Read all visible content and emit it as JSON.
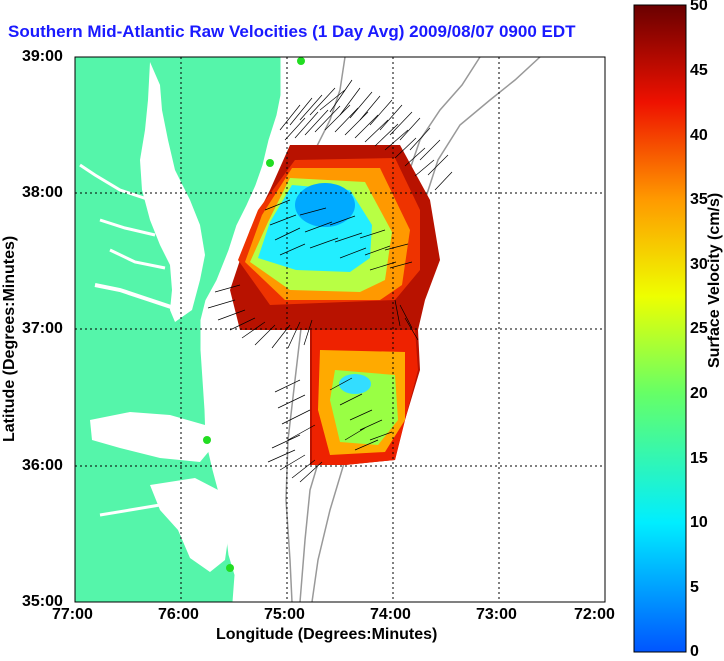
{
  "title": "Southern Mid-Atlantic Raw Velocities (1 Day Avg) 2009/08/07 0900 EDT",
  "map": {
    "xlabel": "Longitude (Degrees:Minutes)",
    "ylabel": "Latitude (Degrees:Minutes)",
    "x_ticks": [
      "77:00",
      "76:00",
      "75:00",
      "74:00",
      "73:00",
      "72:00"
    ],
    "y_ticks": [
      "39:00",
      "38:00",
      "37:00",
      "36:00",
      "35:00"
    ],
    "colors": {
      "land": "#55f5aa",
      "background": "#ffffff",
      "bathymetry": "#999999",
      "station": "#22dd22"
    }
  },
  "colorbar": {
    "label": "Surface Velocity (cm/s)",
    "ticks": [
      "50",
      "45",
      "40",
      "35",
      "30",
      "25",
      "20",
      "15",
      "10",
      "5",
      "0"
    ],
    "range": [
      0,
      50
    ],
    "units": "cm/s"
  }
}
